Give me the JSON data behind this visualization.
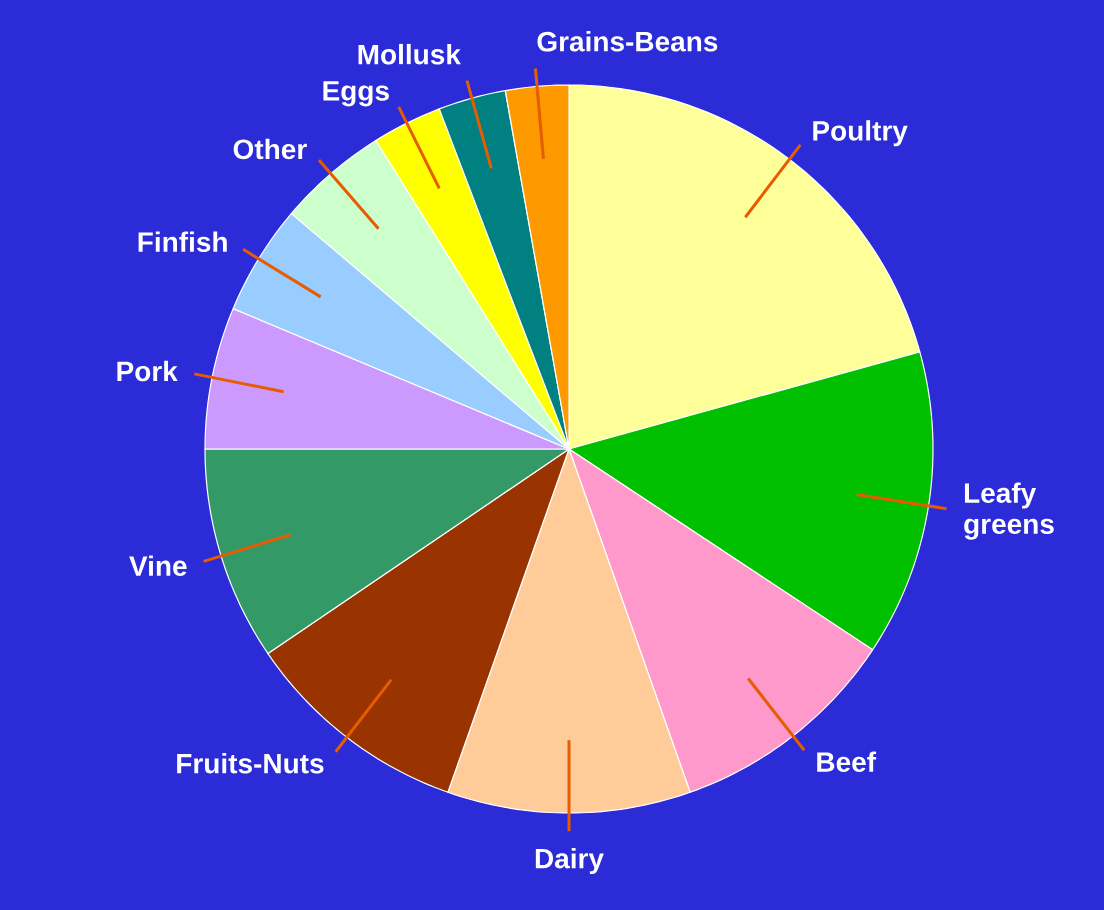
{
  "chart_data": {
    "type": "pie",
    "categories": [
      "Poultry",
      "Leafy greens",
      "Beef",
      "Dairy",
      "Fruits-Nuts",
      "Vine",
      "Pork",
      "Finfish",
      "Other",
      "Eggs",
      "Mollusk",
      "Grains-Beans"
    ],
    "values": [
      20.7,
      13.6,
      10.3,
      10.8,
      10.1,
      9.5,
      6.3,
      4.9,
      4.9,
      3.1,
      3.0,
      2.8
    ],
    "colors": [
      "#ffff99",
      "#00c000",
      "#ff99cc",
      "#ffcc99",
      "#993300",
      "#339966",
      "#cc99ff",
      "#99ccff",
      "#ccffcc",
      "#ffff00",
      "#008080",
      "#ff9900"
    ]
  }
}
